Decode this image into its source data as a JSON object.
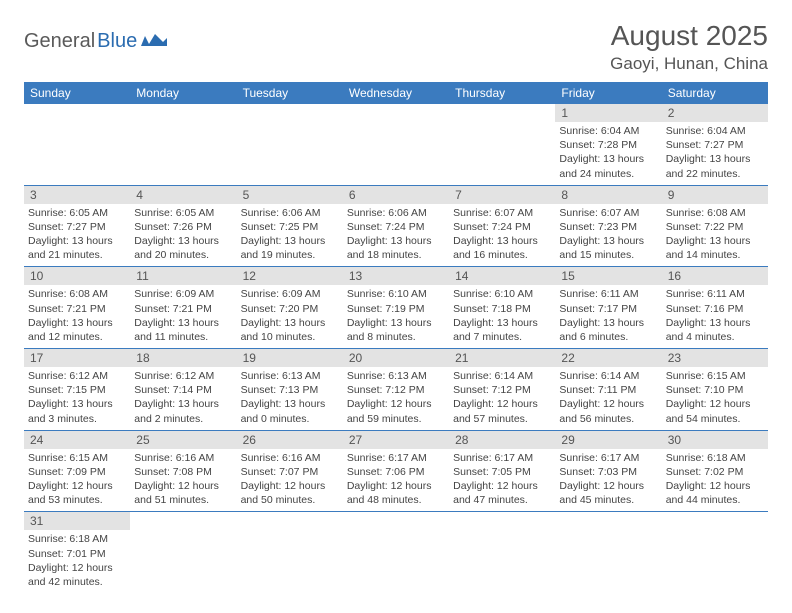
{
  "logo": {
    "part1": "General",
    "part2": "Blue"
  },
  "title": "August 2025",
  "location": "Gaoyi, Hunan, China",
  "weekdays": [
    "Sunday",
    "Monday",
    "Tuesday",
    "Wednesday",
    "Thursday",
    "Friday",
    "Saturday"
  ],
  "colors": {
    "header_bg": "#3b7bbf",
    "header_text": "#ffffff",
    "daynum_bg": "#e3e3e3",
    "border": "#3b7bbf",
    "text": "#444444",
    "logo_dark": "#5a5a5a",
    "logo_blue": "#2b6cb0"
  },
  "weeks": [
    [
      null,
      null,
      null,
      null,
      null,
      {
        "n": "1",
        "sr": "Sunrise: 6:04 AM",
        "ss": "Sunset: 7:28 PM",
        "d1": "Daylight: 13 hours",
        "d2": "and 24 minutes."
      },
      {
        "n": "2",
        "sr": "Sunrise: 6:04 AM",
        "ss": "Sunset: 7:27 PM",
        "d1": "Daylight: 13 hours",
        "d2": "and 22 minutes."
      }
    ],
    [
      {
        "n": "3",
        "sr": "Sunrise: 6:05 AM",
        "ss": "Sunset: 7:27 PM",
        "d1": "Daylight: 13 hours",
        "d2": "and 21 minutes."
      },
      {
        "n": "4",
        "sr": "Sunrise: 6:05 AM",
        "ss": "Sunset: 7:26 PM",
        "d1": "Daylight: 13 hours",
        "d2": "and 20 minutes."
      },
      {
        "n": "5",
        "sr": "Sunrise: 6:06 AM",
        "ss": "Sunset: 7:25 PM",
        "d1": "Daylight: 13 hours",
        "d2": "and 19 minutes."
      },
      {
        "n": "6",
        "sr": "Sunrise: 6:06 AM",
        "ss": "Sunset: 7:24 PM",
        "d1": "Daylight: 13 hours",
        "d2": "and 18 minutes."
      },
      {
        "n": "7",
        "sr": "Sunrise: 6:07 AM",
        "ss": "Sunset: 7:24 PM",
        "d1": "Daylight: 13 hours",
        "d2": "and 16 minutes."
      },
      {
        "n": "8",
        "sr": "Sunrise: 6:07 AM",
        "ss": "Sunset: 7:23 PM",
        "d1": "Daylight: 13 hours",
        "d2": "and 15 minutes."
      },
      {
        "n": "9",
        "sr": "Sunrise: 6:08 AM",
        "ss": "Sunset: 7:22 PM",
        "d1": "Daylight: 13 hours",
        "d2": "and 14 minutes."
      }
    ],
    [
      {
        "n": "10",
        "sr": "Sunrise: 6:08 AM",
        "ss": "Sunset: 7:21 PM",
        "d1": "Daylight: 13 hours",
        "d2": "and 12 minutes."
      },
      {
        "n": "11",
        "sr": "Sunrise: 6:09 AM",
        "ss": "Sunset: 7:21 PM",
        "d1": "Daylight: 13 hours",
        "d2": "and 11 minutes."
      },
      {
        "n": "12",
        "sr": "Sunrise: 6:09 AM",
        "ss": "Sunset: 7:20 PM",
        "d1": "Daylight: 13 hours",
        "d2": "and 10 minutes."
      },
      {
        "n": "13",
        "sr": "Sunrise: 6:10 AM",
        "ss": "Sunset: 7:19 PM",
        "d1": "Daylight: 13 hours",
        "d2": "and 8 minutes."
      },
      {
        "n": "14",
        "sr": "Sunrise: 6:10 AM",
        "ss": "Sunset: 7:18 PM",
        "d1": "Daylight: 13 hours",
        "d2": "and 7 minutes."
      },
      {
        "n": "15",
        "sr": "Sunrise: 6:11 AM",
        "ss": "Sunset: 7:17 PM",
        "d1": "Daylight: 13 hours",
        "d2": "and 6 minutes."
      },
      {
        "n": "16",
        "sr": "Sunrise: 6:11 AM",
        "ss": "Sunset: 7:16 PM",
        "d1": "Daylight: 13 hours",
        "d2": "and 4 minutes."
      }
    ],
    [
      {
        "n": "17",
        "sr": "Sunrise: 6:12 AM",
        "ss": "Sunset: 7:15 PM",
        "d1": "Daylight: 13 hours",
        "d2": "and 3 minutes."
      },
      {
        "n": "18",
        "sr": "Sunrise: 6:12 AM",
        "ss": "Sunset: 7:14 PM",
        "d1": "Daylight: 13 hours",
        "d2": "and 2 minutes."
      },
      {
        "n": "19",
        "sr": "Sunrise: 6:13 AM",
        "ss": "Sunset: 7:13 PM",
        "d1": "Daylight: 13 hours",
        "d2": "and 0 minutes."
      },
      {
        "n": "20",
        "sr": "Sunrise: 6:13 AM",
        "ss": "Sunset: 7:12 PM",
        "d1": "Daylight: 12 hours",
        "d2": "and 59 minutes."
      },
      {
        "n": "21",
        "sr": "Sunrise: 6:14 AM",
        "ss": "Sunset: 7:12 PM",
        "d1": "Daylight: 12 hours",
        "d2": "and 57 minutes."
      },
      {
        "n": "22",
        "sr": "Sunrise: 6:14 AM",
        "ss": "Sunset: 7:11 PM",
        "d1": "Daylight: 12 hours",
        "d2": "and 56 minutes."
      },
      {
        "n": "23",
        "sr": "Sunrise: 6:15 AM",
        "ss": "Sunset: 7:10 PM",
        "d1": "Daylight: 12 hours",
        "d2": "and 54 minutes."
      }
    ],
    [
      {
        "n": "24",
        "sr": "Sunrise: 6:15 AM",
        "ss": "Sunset: 7:09 PM",
        "d1": "Daylight: 12 hours",
        "d2": "and 53 minutes."
      },
      {
        "n": "25",
        "sr": "Sunrise: 6:16 AM",
        "ss": "Sunset: 7:08 PM",
        "d1": "Daylight: 12 hours",
        "d2": "and 51 minutes."
      },
      {
        "n": "26",
        "sr": "Sunrise: 6:16 AM",
        "ss": "Sunset: 7:07 PM",
        "d1": "Daylight: 12 hours",
        "d2": "and 50 minutes."
      },
      {
        "n": "27",
        "sr": "Sunrise: 6:17 AM",
        "ss": "Sunset: 7:06 PM",
        "d1": "Daylight: 12 hours",
        "d2": "and 48 minutes."
      },
      {
        "n": "28",
        "sr": "Sunrise: 6:17 AM",
        "ss": "Sunset: 7:05 PM",
        "d1": "Daylight: 12 hours",
        "d2": "and 47 minutes."
      },
      {
        "n": "29",
        "sr": "Sunrise: 6:17 AM",
        "ss": "Sunset: 7:03 PM",
        "d1": "Daylight: 12 hours",
        "d2": "and 45 minutes."
      },
      {
        "n": "30",
        "sr": "Sunrise: 6:18 AM",
        "ss": "Sunset: 7:02 PM",
        "d1": "Daylight: 12 hours",
        "d2": "and 44 minutes."
      }
    ],
    [
      {
        "n": "31",
        "sr": "Sunrise: 6:18 AM",
        "ss": "Sunset: 7:01 PM",
        "d1": "Daylight: 12 hours",
        "d2": "and 42 minutes."
      },
      null,
      null,
      null,
      null,
      null,
      null
    ]
  ]
}
